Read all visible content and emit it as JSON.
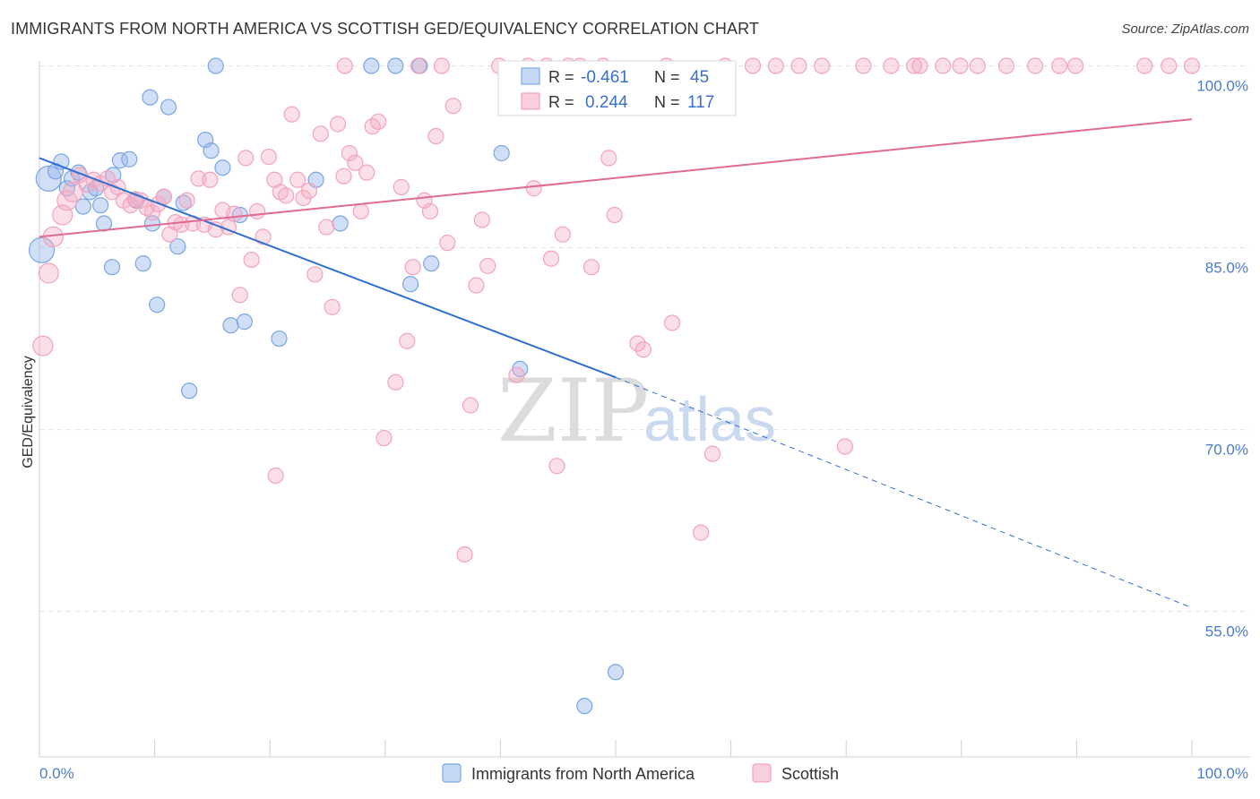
{
  "title": "IMMIGRANTS FROM NORTH AMERICA VS SCOTTISH GED/EQUIVALENCY CORRELATION CHART",
  "source": "Source: ZipAtlas.com",
  "watermark": {
    "zip": "ZIP",
    "atlas": "atlas"
  },
  "colors": {
    "blue": "#7aa6e6",
    "blue_line": "#2f6fd0",
    "pink": "#f3a3bd",
    "pink_line": "#e06b93",
    "axis_label": "#4a7cc9"
  },
  "chart_data": {
    "type": "scatter",
    "xlabel": "",
    "ylabel": "GED/Equivalency",
    "xlim": [
      0,
      100
    ],
    "ylim": [
      43,
      101
    ],
    "x_tick_labels": [
      "0.0%",
      "100.0%"
    ],
    "y_ticks": [
      {
        "value": 100,
        "label": "100.0%"
      },
      {
        "value": 85,
        "label": "85.0%"
      },
      {
        "value": 70,
        "label": "70.0%"
      },
      {
        "value": 55,
        "label": "55.0%"
      }
    ],
    "grid": "horizontal dashed",
    "legend": {
      "placement": "top-center",
      "rows": [
        {
          "r_label": "R = ",
          "r": "-0.461",
          "n_label": "N = ",
          "n": "45"
        },
        {
          "r_label": "R = ",
          "r": "0.244",
          "n_label": "N = ",
          "n": "117"
        }
      ]
    },
    "bottom_legend": [
      "Immigrants from North America",
      "Scottish"
    ],
    "series": [
      {
        "name": "Immigrants from North America",
        "color": "#7aa6e6",
        "trend": {
          "x0": 0,
          "y0": 92.4,
          "x1": 50,
          "y1": 74.3,
          "dash_to_x": 100,
          "dash_to_y": 55.3
        },
        "points": [
          [
            0.2,
            84.8
          ],
          [
            0.8,
            90.7
          ],
          [
            1.4,
            91.3
          ],
          [
            1.9,
            92.1
          ],
          [
            2.4,
            89.9
          ],
          [
            2.8,
            90.7
          ],
          [
            3.4,
            91.2
          ],
          [
            3.8,
            88.4
          ],
          [
            4.4,
            89.6
          ],
          [
            4.9,
            89.9
          ],
          [
            5.3,
            88.5
          ],
          [
            5.6,
            87.0
          ],
          [
            6.3,
            83.4
          ],
          [
            6.4,
            91.0
          ],
          [
            7.0,
            92.2
          ],
          [
            7.8,
            92.3
          ],
          [
            8.4,
            88.9
          ],
          [
            9.0,
            83.7
          ],
          [
            9.6,
            97.4
          ],
          [
            9.8,
            87.0
          ],
          [
            10.2,
            80.3
          ],
          [
            10.8,
            89.2
          ],
          [
            11.2,
            96.6
          ],
          [
            12.0,
            85.1
          ],
          [
            12.5,
            88.7
          ],
          [
            13.0,
            73.2
          ],
          [
            14.4,
            93.9
          ],
          [
            14.9,
            93.0
          ],
          [
            15.3,
            100.0
          ],
          [
            15.9,
            91.6
          ],
          [
            16.6,
            78.6
          ],
          [
            17.4,
            87.7
          ],
          [
            17.8,
            78.9
          ],
          [
            20.8,
            77.5
          ],
          [
            24.0,
            90.6
          ],
          [
            26.1,
            87.0
          ],
          [
            28.8,
            100.0
          ],
          [
            30.9,
            100.0
          ],
          [
            32.2,
            82.0
          ],
          [
            33.0,
            100.0
          ],
          [
            34.0,
            83.7
          ],
          [
            40.1,
            92.8
          ],
          [
            41.7,
            75.0
          ],
          [
            47.3,
            47.2
          ],
          [
            50.0,
            50.0
          ]
        ]
      },
      {
        "name": "Scottish",
        "color": "#f3a3bd",
        "trend": {
          "x0": 0,
          "y0": 85.9,
          "x1": 100,
          "y1": 95.6
        },
        "points": [
          [
            0.3,
            76.9
          ],
          [
            0.8,
            82.9
          ],
          [
            1.2,
            85.9
          ],
          [
            2.0,
            87.7
          ],
          [
            2.4,
            88.9
          ],
          [
            2.9,
            89.6
          ],
          [
            3.5,
            91.0
          ],
          [
            4.1,
            90.2
          ],
          [
            4.7,
            90.6
          ],
          [
            5.3,
            90.3
          ],
          [
            5.9,
            90.7
          ],
          [
            6.3,
            89.6
          ],
          [
            6.8,
            90.0
          ],
          [
            7.3,
            88.9
          ],
          [
            7.9,
            88.5
          ],
          [
            8.3,
            89.0
          ],
          [
            8.8,
            88.9
          ],
          [
            9.3,
            88.3
          ],
          [
            9.8,
            87.9
          ],
          [
            10.3,
            88.6
          ],
          [
            10.8,
            89.2
          ],
          [
            11.3,
            86.1
          ],
          [
            11.8,
            87.1
          ],
          [
            12.3,
            86.9
          ],
          [
            12.8,
            88.9
          ],
          [
            13.3,
            87.0
          ],
          [
            13.8,
            90.7
          ],
          [
            14.3,
            86.9
          ],
          [
            14.8,
            90.6
          ],
          [
            15.3,
            86.5
          ],
          [
            15.9,
            88.1
          ],
          [
            16.4,
            86.7
          ],
          [
            16.9,
            87.8
          ],
          [
            17.4,
            81.1
          ],
          [
            17.9,
            92.4
          ],
          [
            18.4,
            84.0
          ],
          [
            18.9,
            88.0
          ],
          [
            19.4,
            85.9
          ],
          [
            19.9,
            92.5
          ],
          [
            20.4,
            90.6
          ],
          [
            20.9,
            89.6
          ],
          [
            21.4,
            89.3
          ],
          [
            21.9,
            96.0
          ],
          [
            22.4,
            90.6
          ],
          [
            22.9,
            89.1
          ],
          [
            23.4,
            89.7
          ],
          [
            23.9,
            82.8
          ],
          [
            24.4,
            94.4
          ],
          [
            24.9,
            86.7
          ],
          [
            25.4,
            80.1
          ],
          [
            25.9,
            95.2
          ],
          [
            26.4,
            90.9
          ],
          [
            26.9,
            92.8
          ],
          [
            27.4,
            92.0
          ],
          [
            27.9,
            88.0
          ],
          [
            28.4,
            91.2
          ],
          [
            28.9,
            95.0
          ],
          [
            29.4,
            95.4
          ],
          [
            29.9,
            69.3
          ],
          [
            30.9,
            73.9
          ],
          [
            31.4,
            90.0
          ],
          [
            31.9,
            77.3
          ],
          [
            32.4,
            83.4
          ],
          [
            32.9,
            100.0
          ],
          [
            33.4,
            88.9
          ],
          [
            33.9,
            88.0
          ],
          [
            34.4,
            94.2
          ],
          [
            34.9,
            100.0
          ],
          [
            35.4,
            85.4
          ],
          [
            35.9,
            96.7
          ],
          [
            36.9,
            59.7
          ],
          [
            37.4,
            72.0
          ],
          [
            37.9,
            81.9
          ],
          [
            38.4,
            87.3
          ],
          [
            38.9,
            83.5
          ],
          [
            39.9,
            100.0
          ],
          [
            41.4,
            74.5
          ],
          [
            42.4,
            100.0
          ],
          [
            42.9,
            89.9
          ],
          [
            44.4,
            84.1
          ],
          [
            44.9,
            67.0
          ],
          [
            45.4,
            86.1
          ],
          [
            45.9,
            100.0
          ],
          [
            46.9,
            100.0
          ],
          [
            47.9,
            83.4
          ],
          [
            48.9,
            100.0
          ],
          [
            49.4,
            92.4
          ],
          [
            49.9,
            87.7
          ],
          [
            51.9,
            77.1
          ],
          [
            52.4,
            76.6
          ],
          [
            54.4,
            100.0
          ],
          [
            54.9,
            78.8
          ],
          [
            57.4,
            61.5
          ],
          [
            58.4,
            68.0
          ],
          [
            61.9,
            100.0
          ],
          [
            63.9,
            100.0
          ],
          [
            65.9,
            100.0
          ],
          [
            67.9,
            100.0
          ],
          [
            69.9,
            68.6
          ],
          [
            73.9,
            100.0
          ],
          [
            75.9,
            100.0
          ],
          [
            76.4,
            100.0
          ],
          [
            78.4,
            100.0
          ],
          [
            79.9,
            100.0
          ],
          [
            81.4,
            100.0
          ],
          [
            83.9,
            100.0
          ],
          [
            86.4,
            100.0
          ],
          [
            89.9,
            100.0
          ],
          [
            95.9,
            100.0
          ],
          [
            100.0,
            100.0
          ],
          [
            20.5,
            66.2
          ],
          [
            26.5,
            100.0
          ],
          [
            44.0,
            100.0
          ],
          [
            59.5,
            100.0
          ],
          [
            71.5,
            100.0
          ],
          [
            88.5,
            100.0
          ],
          [
            98.0,
            100.0
          ]
        ]
      }
    ]
  }
}
